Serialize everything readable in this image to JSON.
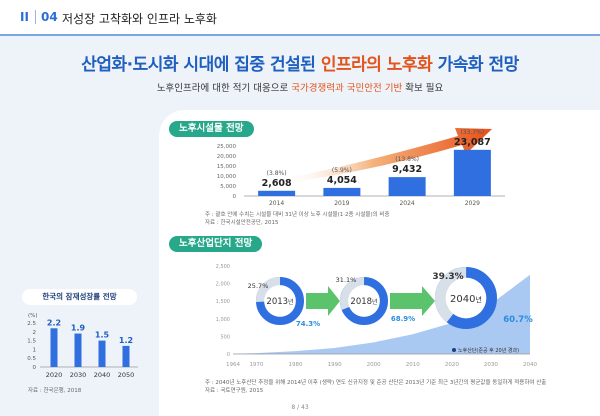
{
  "header": {
    "roman": "II",
    "number": "04",
    "title": "저성장 고착화와 인프라 노후화"
  },
  "main_title": {
    "part1": "산업화·도시화 시대에 집중 건설된 ",
    "part2": "인프라의 노후화",
    "part3": " 가속화 전망"
  },
  "subtitle": {
    "part1": "노후인프라에 대한 적기 대응으로 ",
    "part2": "국가경쟁력과 국민안전 기반",
    "part3": " 확보 필요"
  },
  "colors": {
    "blue": "#1f5fbf",
    "orange": "#e2531d",
    "green": "#28a88a",
    "bar": "#2f6fe0",
    "cyan": "#2a8de0"
  },
  "chart_data": [
    {
      "type": "bar",
      "title": "노후시설물 전망",
      "categories": [
        "2014",
        "2019",
        "2024",
        "2029"
      ],
      "values": [
        2608,
        4054,
        9432,
        23087
      ],
      "value_labels": [
        "2,608",
        "4,054",
        "9,432",
        "23,087"
      ],
      "pct_labels": [
        "(3.8%)",
        "(5.9%)",
        "(13.8%)",
        "(33.7%)"
      ],
      "yticks": [
        "25,000",
        "20,000",
        "15,000",
        "10,000",
        "5,000",
        "0"
      ],
      "ylim": [
        0,
        25000
      ],
      "notes": [
        "주 : 괄호 안에 수치는 시설물 대비 31년 이상 노후 시설물(1·2종 시설물)의 비중",
        "자료 : 한국시설안전공단, 2015"
      ]
    },
    {
      "type": "area",
      "title": "노후산업단지 전망",
      "x": [
        1964,
        1970,
        1980,
        1990,
        2000,
        2010,
        2020,
        2030,
        2040
      ],
      "xticks": [
        "1964",
        "1970",
        "1980",
        "1990",
        "2000",
        "2010",
        "2020",
        "2030",
        "2040"
      ],
      "yticks": [
        "2,500",
        "2,000",
        "1,500",
        "1,000",
        "500",
        "0"
      ],
      "ylim": [
        0,
        2500
      ],
      "area_values": [
        [
          1964,
          5
        ],
        [
          1970,
          25
        ],
        [
          1980,
          80
        ],
        [
          1990,
          170
        ],
        [
          2000,
          330
        ],
        [
          2010,
          560
        ],
        [
          2020,
          880
        ],
        [
          2030,
          1420
        ],
        [
          2040,
          2250
        ]
      ],
      "donuts": [
        {
          "year": "2013",
          "suffix": "년",
          "old_pct": "25.7%",
          "new_pct": "74.3%",
          "old_share": 25.7
        },
        {
          "year": "2018",
          "suffix": "년",
          "old_pct": "31.1%",
          "new_pct": "68.9%",
          "old_share": 31.1
        },
        {
          "year": "2040",
          "suffix": "년",
          "old_pct": "39.3%",
          "new_pct": "60.7%",
          "old_share": 39.3
        }
      ],
      "legend": "노후산단(준공 후 20년 경과)",
      "notes": [
        "주 : 2040년 노후산단 추정을 위해 2014년 이후 (생략) 연도 신규지정 및 준공 산단은 2013년 기준 최근 3년간의 평균값을 동일하게 적용하여 산출",
        "자료 : 국토연구원, 2015"
      ]
    },
    {
      "type": "bar",
      "title": "한국의 잠재성장률 전망",
      "ylabel": "(%)",
      "categories": [
        "2020",
        "2030",
        "2040",
        "2050"
      ],
      "values": [
        2.2,
        1.9,
        1.5,
        1.2
      ],
      "value_labels": [
        "2.2",
        "1.9",
        "1.5",
        "1.2"
      ],
      "yticks": [
        "2.5",
        "2",
        "1.5",
        "1",
        "0.5",
        "0"
      ],
      "ylim": [
        0,
        2.5
      ],
      "notes": [
        "자료 : 한국은행, 2018"
      ]
    }
  ],
  "page": "8 / 43"
}
